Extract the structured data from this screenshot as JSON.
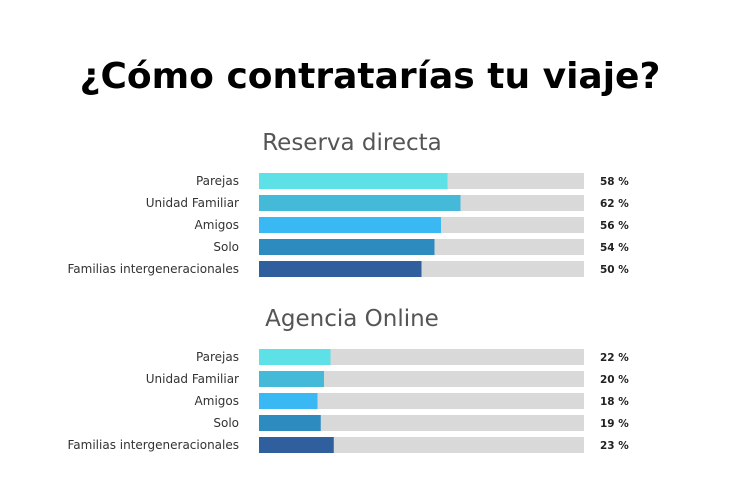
{
  "title": "¿Cómo contratarías tu viaje?",
  "colors": {
    "track": "#d9d9d9",
    "categories": [
      "#5de0e6",
      "#45b9d8",
      "#3ab8f4",
      "#2e8bbf",
      "#2f5f9c"
    ]
  },
  "chart_data": [
    {
      "type": "bar",
      "orientation": "horizontal",
      "title": "Reserva directa",
      "categories": [
        "Parejas",
        "Unidad Familiar",
        "Amigos",
        "Solo",
        "Familias intergeneracionales"
      ],
      "values": [
        58,
        62,
        56,
        54,
        50
      ],
      "value_labels": [
        "58 %",
        "62 %",
        "56 %",
        "54 %",
        "50 %"
      ],
      "xlim": [
        0,
        100
      ],
      "grid": false,
      "legend": "none"
    },
    {
      "type": "bar",
      "orientation": "horizontal",
      "title": "Agencia Online",
      "categories": [
        "Parejas",
        "Unidad Familiar",
        "Amigos",
        "Solo",
        "Familias intergeneracionales"
      ],
      "values": [
        22,
        20,
        18,
        19,
        23
      ],
      "value_labels": [
        "22 %",
        "20 %",
        "18 %",
        "19 %",
        "23 %"
      ],
      "xlim": [
        0,
        100
      ],
      "grid": false,
      "legend": "none"
    }
  ]
}
